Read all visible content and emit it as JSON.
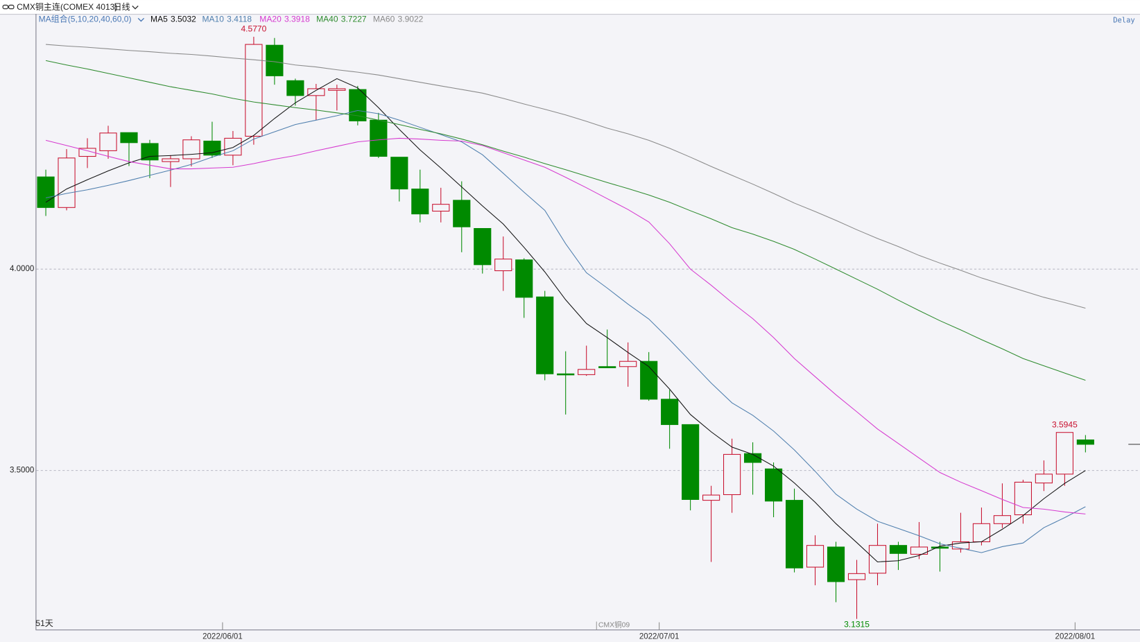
{
  "chart_data": {
    "type": "candlestick",
    "title": "CMX铜主连(COMEX 4013)",
    "period": "日线",
    "indicator": "MA组合(5,10,20,40,60,0)",
    "status": "Delay",
    "count_label": "51天",
    "contract_label": "CMX铜09",
    "categories": [
      null,
      null,
      null,
      null,
      null,
      null,
      null,
      null,
      "2022/06/01",
      null,
      null,
      null,
      null,
      null,
      null,
      null,
      null,
      null,
      null,
      null,
      null,
      null,
      null,
      null,
      null,
      null,
      null,
      null,
      null,
      "2022/07/01",
      null,
      null,
      null,
      null,
      null,
      null,
      null,
      null,
      null,
      null,
      null,
      null,
      null,
      null,
      null,
      null,
      null,
      null,
      null,
      "2022/08/01",
      null
    ],
    "open": [
      4.229,
      4.153,
      4.28,
      4.294,
      4.339,
      4.312,
      4.267,
      4.274,
      4.318,
      4.283,
      4.33,
      4.556,
      4.468,
      4.431,
      4.444,
      4.446,
      4.37,
      4.278,
      4.199,
      4.144,
      4.171,
      4.101,
      3.996,
      4.023,
      3.931,
      3.74,
      3.738,
      3.758,
      3.758,
      3.771,
      3.677,
      3.614,
      3.426,
      3.44,
      3.542,
      3.504,
      3.426,
      3.26,
      3.31,
      3.229,
      3.245,
      3.314,
      3.292,
      3.31,
      3.305,
      3.323,
      3.368,
      3.39,
      3.469,
      3.491,
      3.576
    ],
    "high": [
      4.247,
      4.298,
      4.325,
      4.356,
      4.339,
      4.321,
      4.283,
      4.33,
      4.366,
      4.343,
      4.577,
      4.574,
      4.473,
      4.46,
      4.458,
      4.455,
      4.388,
      4.278,
      4.247,
      4.202,
      4.218,
      4.101,
      4.081,
      4.027,
      3.946,
      3.796,
      3.81,
      3.85,
      3.818,
      3.794,
      3.7,
      3.614,
      3.462,
      3.579,
      3.57,
      3.52,
      3.455,
      3.339,
      3.323,
      3.278,
      3.368,
      3.323,
      3.372,
      3.323,
      3.395,
      3.408,
      3.468,
      3.477,
      3.525,
      3.5945,
      3.588
    ],
    "low": [
      4.132,
      4.146,
      4.251,
      4.274,
      4.256,
      4.226,
      4.204,
      4.255,
      4.276,
      4.258,
      4.309,
      4.458,
      4.406,
      4.37,
      4.394,
      4.357,
      4.276,
      4.168,
      4.116,
      4.116,
      4.042,
      3.989,
      3.946,
      3.879,
      3.724,
      3.639,
      3.735,
      3.755,
      3.708,
      3.673,
      3.554,
      3.401,
      3.273,
      3.395,
      3.44,
      3.384,
      3.247,
      3.215,
      3.173,
      3.1315,
      3.215,
      3.253,
      3.28,
      3.249,
      3.296,
      3.314,
      3.357,
      3.368,
      3.449,
      3.462,
      3.545
    ],
    "close": [
      4.153,
      4.276,
      4.3,
      4.338,
      4.314,
      4.271,
      4.274,
      4.321,
      4.283,
      4.325,
      4.558,
      4.48,
      4.431,
      4.448,
      4.448,
      4.368,
      4.28,
      4.199,
      4.137,
      4.161,
      4.105,
      4.011,
      4.025,
      3.93,
      3.74,
      3.738,
      3.751,
      3.755,
      3.771,
      3.677,
      3.614,
      3.428,
      3.439,
      3.54,
      3.52,
      3.424,
      3.258,
      3.314,
      3.224,
      3.244,
      3.314,
      3.294,
      3.31,
      3.307,
      3.323,
      3.368,
      3.388,
      3.471,
      3.491,
      3.5945,
      3.565
    ],
    "high_labels": [
      null,
      null,
      null,
      null,
      null,
      null,
      null,
      null,
      null,
      null,
      "4.5770",
      null,
      null,
      null,
      null,
      null,
      null,
      null,
      null,
      null,
      null,
      null,
      null,
      null,
      null,
      null,
      null,
      null,
      null,
      null,
      null,
      null,
      null,
      null,
      null,
      null,
      null,
      null,
      null,
      null,
      null,
      null,
      null,
      null,
      null,
      null,
      null,
      null,
      null,
      "3.5945",
      null
    ],
    "low_labels": [
      null,
      null,
      null,
      null,
      null,
      null,
      null,
      null,
      null,
      null,
      null,
      null,
      null,
      null,
      null,
      null,
      null,
      null,
      null,
      null,
      null,
      null,
      null,
      null,
      null,
      null,
      null,
      null,
      null,
      null,
      null,
      null,
      null,
      null,
      null,
      null,
      null,
      null,
      null,
      "3.1315",
      null,
      null,
      null,
      null,
      null,
      null,
      null,
      null,
      null,
      null,
      null
    ],
    "up_color": "#c8102e",
    "down_color": "#008a00",
    "series": [
      {
        "name": "MA5",
        "color": "#111111",
        "current": 3.5032,
        "values": [
          4.166,
          4.199,
          4.222,
          4.244,
          4.264,
          4.28,
          4.282,
          4.285,
          4.289,
          4.302,
          4.332,
          4.374,
          4.413,
          4.444,
          4.473,
          4.45,
          4.401,
          4.347,
          4.296,
          4.251,
          4.204,
          4.157,
          4.112,
          4.054,
          3.993,
          3.924,
          3.865,
          3.83,
          3.793,
          3.758,
          3.702,
          3.639,
          3.596,
          3.558,
          3.54,
          3.511,
          3.469,
          3.421,
          3.368,
          3.321,
          3.273,
          3.276,
          3.289,
          3.312,
          3.32,
          3.323,
          3.354,
          3.388,
          3.43,
          3.468,
          3.5
        ]
      },
      {
        "name": "MA10",
        "color": "#4f7fae",
        "current": 3.4118,
        "values": [
          4.177,
          4.188,
          4.197,
          4.208,
          4.22,
          4.233,
          4.246,
          4.26,
          4.278,
          4.294,
          4.323,
          4.341,
          4.359,
          4.37,
          4.381,
          4.394,
          4.386,
          4.37,
          4.352,
          4.334,
          4.316,
          4.284,
          4.238,
          4.191,
          4.146,
          4.063,
          3.991,
          3.953,
          3.913,
          3.876,
          3.825,
          3.771,
          3.717,
          3.668,
          3.637,
          3.598,
          3.551,
          3.498,
          3.441,
          3.404,
          3.374,
          3.356,
          3.338,
          3.318,
          3.307,
          3.296,
          3.311,
          3.32,
          3.358,
          3.383,
          3.41
        ]
      },
      {
        "name": "MA20",
        "color": "#d63ad0",
        "current": 3.3918,
        "values": [
          4.32,
          4.307,
          4.294,
          4.28,
          4.267,
          4.258,
          4.249,
          4.249,
          4.251,
          4.253,
          4.262,
          4.273,
          4.282,
          4.294,
          4.305,
          4.316,
          4.321,
          4.325,
          4.323,
          4.32,
          4.318,
          4.307,
          4.289,
          4.271,
          4.253,
          4.228,
          4.202,
          4.175,
          4.148,
          4.117,
          4.063,
          4.0,
          3.96,
          3.917,
          3.877,
          3.83,
          3.778,
          3.733,
          3.688,
          3.646,
          3.603,
          3.567,
          3.531,
          3.495,
          3.471,
          3.45,
          3.428,
          3.408,
          3.404,
          3.397,
          3.392
        ]
      },
      {
        "name": "MA40",
        "color": "#2e8b2e",
        "current": 3.7227,
        "values": [
          4.518,
          4.507,
          4.497,
          4.486,
          4.475,
          4.464,
          4.453,
          4.444,
          4.435,
          4.424,
          4.415,
          4.408,
          4.401,
          4.395,
          4.388,
          4.381,
          4.37,
          4.359,
          4.347,
          4.336,
          4.323,
          4.309,
          4.293,
          4.278,
          4.262,
          4.247,
          4.231,
          4.215,
          4.2,
          4.184,
          4.166,
          4.145,
          4.125,
          4.103,
          4.087,
          4.069,
          4.049,
          4.025,
          4.0,
          3.975,
          3.95,
          3.923,
          3.897,
          3.872,
          3.849,
          3.825,
          3.802,
          3.778,
          3.76,
          3.742,
          3.724
        ]
      },
      {
        "name": "MA60",
        "color": "#8a8a8a",
        "current": 3.9022,
        "values": [
          4.558,
          4.554,
          4.551,
          4.547,
          4.543,
          4.54,
          4.536,
          4.533,
          4.529,
          4.524,
          4.52,
          4.515,
          4.507,
          4.502,
          4.495,
          4.489,
          4.482,
          4.473,
          4.464,
          4.455,
          4.446,
          4.437,
          4.424,
          4.41,
          4.397,
          4.383,
          4.367,
          4.35,
          4.336,
          4.32,
          4.3,
          4.278,
          4.255,
          4.233,
          4.211,
          4.188,
          4.164,
          4.143,
          4.121,
          4.098,
          4.076,
          4.056,
          4.034,
          4.015,
          3.997,
          3.978,
          3.962,
          3.946,
          3.93,
          3.917,
          3.903
        ]
      }
    ],
    "ylim": [
      3.105,
      4.632
    ],
    "yticks": [
      {
        "value": 4,
        "label": "4.0000"
      },
      {
        "value": 3.5,
        "label": "3.5000"
      }
    ],
    "grid": true
  }
}
